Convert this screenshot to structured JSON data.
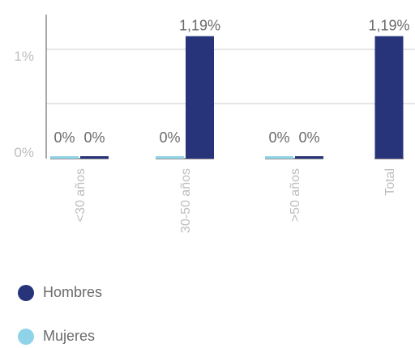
{
  "chart_data": {
    "type": "bar",
    "categories": [
      "<30 años",
      "30-50 años",
      ">50 años",
      "Total"
    ],
    "series": [
      {
        "name": "Mujeres",
        "values": [
          0,
          0,
          0,
          null
        ],
        "labels": [
          "0%",
          "0%",
          "0%",
          ""
        ],
        "color": "#8fd3e8"
      },
      {
        "name": "Hombres",
        "values": [
          0,
          1.19,
          0,
          1.19
        ],
        "labels": [
          "0%",
          "1,19%",
          "0%",
          "1,19%"
        ],
        "color": "#28347a"
      }
    ],
    "y_ticks": [
      {
        "value": 0,
        "label": "0%"
      },
      {
        "value": 1,
        "label": "1%"
      }
    ],
    "ylim": [
      0,
      1.4
    ],
    "grid": true,
    "legend_position": "bottom-left",
    "colors": {
      "axis": "#555555",
      "grid": "#cccccc",
      "text": "#6b6b6b",
      "tick_text": "#bdbdbd"
    }
  }
}
